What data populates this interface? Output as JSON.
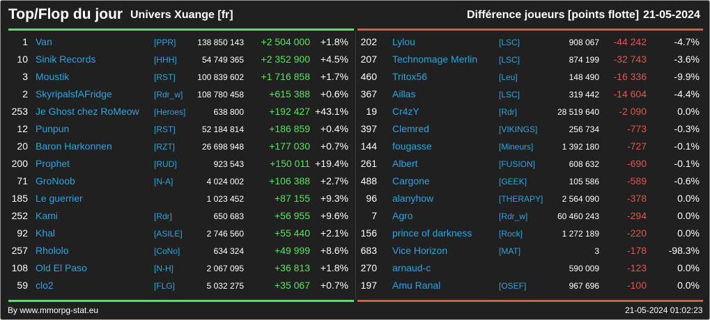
{
  "header": {
    "title": "Top/Flop du jour",
    "universe": "Univers Xuange [fr]",
    "metric": "Différence joueurs [points flotte]",
    "date": "21-05-2024"
  },
  "colors": {
    "background": "#202020",
    "top_accent": "#55e55d",
    "flop_accent": "#e0554d",
    "name_link": "#2aa5e0"
  },
  "top": [
    {
      "rank": "1",
      "name": "Van",
      "alliance": "[PPR]",
      "points": "138 850 143",
      "diff": "+2 504 000",
      "pct": "+1.8%"
    },
    {
      "rank": "10",
      "name": "Sinik Records",
      "alliance": "[HHH]",
      "points": "54 749 365",
      "diff": "+2 352 900",
      "pct": "+4.5%"
    },
    {
      "rank": "3",
      "name": "Moustik",
      "alliance": "[RST]",
      "points": "100 839 602",
      "diff": "+1 716 858",
      "pct": "+1.7%"
    },
    {
      "rank": "2",
      "name": "SkyripalsfAFridge",
      "alliance": "[Rdr_w]",
      "points": "108 780 458",
      "diff": "+615 388",
      "pct": "+0.6%"
    },
    {
      "rank": "253",
      "name": "Je Ghost chez RoMeow",
      "alliance": "[Heroes]",
      "points": "638 800",
      "diff": "+192 427",
      "pct": "+43.1%"
    },
    {
      "rank": "12",
      "name": "Punpun",
      "alliance": "[RST]",
      "points": "52 184 814",
      "diff": "+186 859",
      "pct": "+0.4%"
    },
    {
      "rank": "20",
      "name": "Baron Harkonnen",
      "alliance": "[RZT]",
      "points": "26 698 948",
      "diff": "+177 030",
      "pct": "+0.7%"
    },
    {
      "rank": "200",
      "name": "Prophet",
      "alliance": "[RUD]",
      "points": "923 543",
      "diff": "+150 011",
      "pct": "+19.4%"
    },
    {
      "rank": "71",
      "name": "GroNoob",
      "alliance": "[N-A]",
      "points": "4 024 002",
      "diff": "+106 388",
      "pct": "+2.7%"
    },
    {
      "rank": "185",
      "name": "Le guerrier",
      "alliance": "",
      "points": "1 023 452",
      "diff": "+87 155",
      "pct": "+9.3%"
    },
    {
      "rank": "252",
      "name": "Kami",
      "alliance": "[Rdr]",
      "points": "650 683",
      "diff": "+56 955",
      "pct": "+9.6%"
    },
    {
      "rank": "92",
      "name": "Khal",
      "alliance": "[ASILE]",
      "points": "2 746 560",
      "diff": "+55 440",
      "pct": "+2.1%"
    },
    {
      "rank": "257",
      "name": "Rhololo",
      "alliance": "[CoNo]",
      "points": "634 324",
      "diff": "+49 999",
      "pct": "+8.6%"
    },
    {
      "rank": "108",
      "name": "Old El Paso",
      "alliance": "[N-H]",
      "points": "2 067 095",
      "diff": "+36 813",
      "pct": "+1.8%"
    },
    {
      "rank": "59",
      "name": "clo2",
      "alliance": "[FLG]",
      "points": "5 032 275",
      "diff": "+35 067",
      "pct": "+0.7%"
    }
  ],
  "flop": [
    {
      "rank": "202",
      "name": "Lylou",
      "alliance": "[LSC]",
      "points": "908 067",
      "diff": "-44 242",
      "pct": "-4.7%"
    },
    {
      "rank": "207",
      "name": "Technomage Merlin",
      "alliance": "[LSC]",
      "points": "874 199",
      "diff": "-32 743",
      "pct": "-3.6%"
    },
    {
      "rank": "460",
      "name": "Tritox56",
      "alliance": "[Leu]",
      "points": "148 490",
      "diff": "-16 336",
      "pct": "-9.9%"
    },
    {
      "rank": "367",
      "name": "Aillas",
      "alliance": "[LSC]",
      "points": "319 442",
      "diff": "-14 604",
      "pct": "-4.4%"
    },
    {
      "rank": "19",
      "name": "Cr4zY",
      "alliance": "[Rdr]",
      "points": "28 519 640",
      "diff": "-2 090",
      "pct": "0.0%"
    },
    {
      "rank": "397",
      "name": "Clemred",
      "alliance": "[VIKINGS]",
      "points": "256 734",
      "diff": "-773",
      "pct": "-0.3%"
    },
    {
      "rank": "144",
      "name": "fougasse",
      "alliance": "[Mineurs]",
      "points": "1 392 180",
      "diff": "-727",
      "pct": "-0.1%"
    },
    {
      "rank": "261",
      "name": "Albert",
      "alliance": "[FUSION]",
      "points": "608 632",
      "diff": "-690",
      "pct": "-0.1%"
    },
    {
      "rank": "488",
      "name": "Cargone",
      "alliance": "[GEEK]",
      "points": "105 586",
      "diff": "-589",
      "pct": "-0.6%"
    },
    {
      "rank": "96",
      "name": "alanyhow",
      "alliance": "[THERAPY]",
      "points": "2 564 090",
      "diff": "-378",
      "pct": "0.0%"
    },
    {
      "rank": "7",
      "name": "Agro",
      "alliance": "[Rdr_w]",
      "points": "60 460 243",
      "diff": "-294",
      "pct": "0.0%"
    },
    {
      "rank": "156",
      "name": "prince of darkness",
      "alliance": "[Rock]",
      "points": "1 272 189",
      "diff": "-220",
      "pct": "0.0%"
    },
    {
      "rank": "683",
      "name": "Vice Horizon",
      "alliance": "[MAT]",
      "points": "3",
      "diff": "-178",
      "pct": "-98.3%"
    },
    {
      "rank": "270",
      "name": "arnaud-c",
      "alliance": "",
      "points": "590 009",
      "diff": "-123",
      "pct": "0.0%"
    },
    {
      "rank": "197",
      "name": "Amu Ranal",
      "alliance": "[OSEF]",
      "points": "967 696",
      "diff": "-100",
      "pct": "0.0%"
    }
  ],
  "footer": {
    "credit": "By www.mmorpg-stat.eu",
    "timestamp": "21-05-2024 01:02:23"
  }
}
